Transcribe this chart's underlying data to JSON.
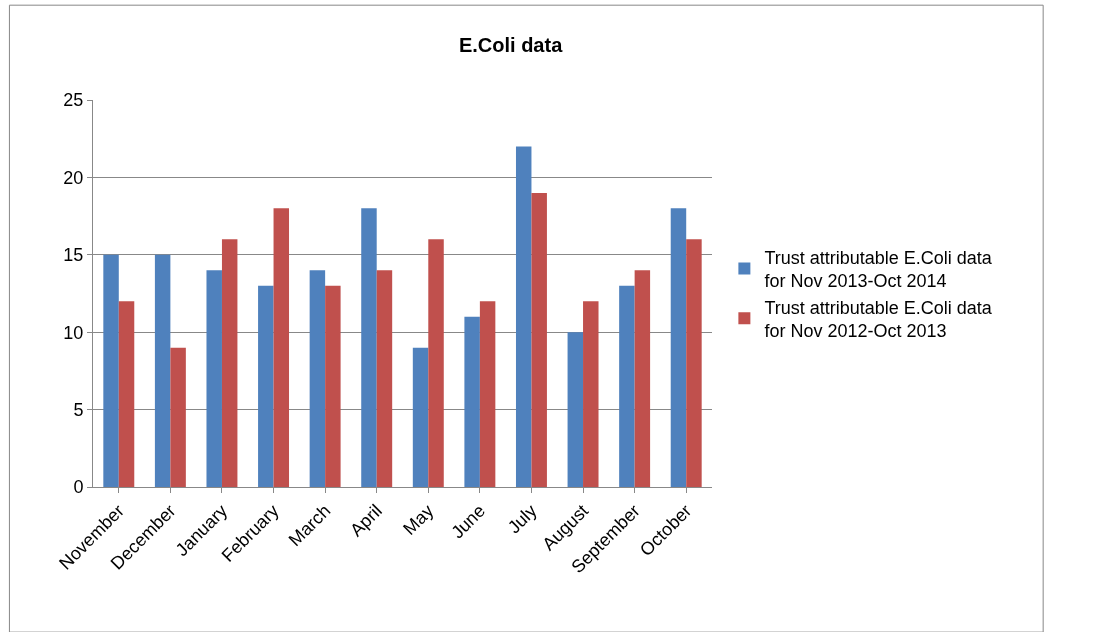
{
  "chart_data": {
    "type": "bar",
    "title": "E.Coli data",
    "categories": [
      "November",
      "December",
      "January",
      "February",
      "March",
      "April",
      "May",
      "June",
      "July",
      "August",
      "September",
      "October"
    ],
    "series": [
      {
        "name": "Trust attributable E.Coli data for Nov 2013-Oct 2014",
        "color": "#4f81bd",
        "values": [
          15,
          15,
          14,
          13,
          14,
          18,
          9,
          11,
          22,
          10,
          13,
          18
        ]
      },
      {
        "name": "Trust attributable E.Coli data for Nov 2012-Oct 2013",
        "color": "#c0504d",
        "values": [
          12,
          9,
          16,
          18,
          13,
          14,
          16,
          12,
          19,
          12,
          14,
          16
        ]
      }
    ],
    "ylim": [
      0,
      25
    ],
    "yticks": [
      0,
      5,
      10,
      15,
      20,
      25
    ],
    "grid": "y",
    "legend": "right"
  }
}
